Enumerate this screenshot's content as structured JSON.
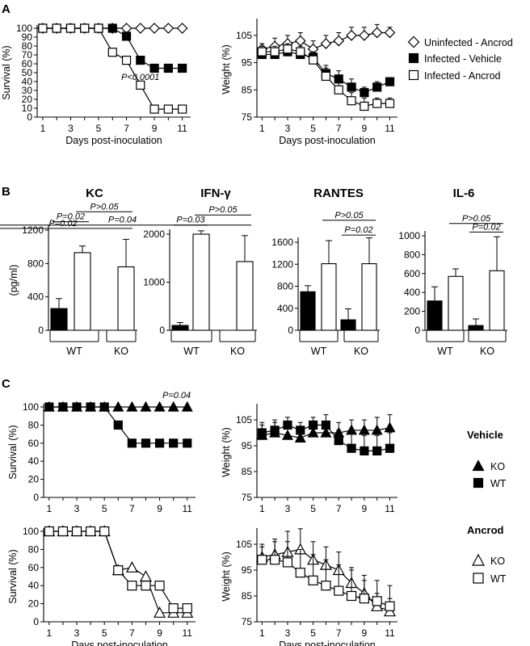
{
  "panels": {
    "a": "A",
    "b": "B",
    "c": "C"
  },
  "legend_a": [
    {
      "label": "Uninfected - Ancrod",
      "marker": "diamond-open"
    },
    {
      "label": "Infected - Vehicle",
      "marker": "square-filled"
    },
    {
      "label": "Infected - Ancrod",
      "marker": "square-open"
    }
  ],
  "legend_c": {
    "vehicle_title": "Vehicle",
    "ancrod_title": "Ancrod",
    "vehicle": [
      {
        "label": "KO",
        "marker": "triangle-filled"
      },
      {
        "label": "WT",
        "marker": "square-filled"
      }
    ],
    "ancrod": [
      {
        "label": "KO",
        "marker": "triangle-open"
      },
      {
        "label": "WT",
        "marker": "square-open"
      }
    ]
  },
  "b_groups": [
    "WT",
    "KO"
  ],
  "chart_data": [
    {
      "id": "A-survival",
      "type": "line",
      "xlabel": "Days post-inoculation",
      "ylabel": "Survival (%)",
      "xlim": [
        0.6,
        11.6
      ],
      "xticks": [
        1,
        3,
        5,
        7,
        9,
        11
      ],
      "ylim": [
        0,
        100
      ],
      "yticks": [
        0,
        10,
        20,
        30,
        40,
        50,
        60,
        70,
        80,
        90,
        100
      ],
      "annotation": "P<0.0001",
      "series": [
        {
          "marker": "diamond-open",
          "x": [
            1,
            2,
            3,
            4,
            5,
            6,
            7,
            8,
            9,
            10,
            11
          ],
          "y": [
            100,
            100,
            100,
            100,
            100,
            100,
            100,
            100,
            100,
            100,
            100
          ]
        },
        {
          "marker": "square-filled",
          "x": [
            1,
            2,
            3,
            4,
            5,
            6,
            7,
            8,
            9,
            10,
            11
          ],
          "y": [
            100,
            100,
            100,
            100,
            100,
            100,
            91,
            64,
            55,
            55,
            55
          ]
        },
        {
          "marker": "square-open",
          "x": [
            1,
            2,
            3,
            4,
            5,
            6,
            7,
            8,
            9,
            10,
            11
          ],
          "y": [
            100,
            100,
            100,
            100,
            100,
            73,
            64,
            36,
            9,
            9,
            9
          ]
        }
      ]
    },
    {
      "id": "A-weight",
      "type": "line",
      "xlabel": "Days post-inoculation",
      "ylabel": "Weight  (%)",
      "xlim": [
        0.6,
        11.6
      ],
      "xticks": [
        1,
        3,
        5,
        7,
        9,
        11
      ],
      "ylim": [
        75,
        110
      ],
      "yticks": [
        75,
        85,
        95,
        105
      ],
      "series": [
        {
          "marker": "diamond-open",
          "x": [
            1,
            2,
            3,
            4,
            5,
            6,
            7,
            8,
            9,
            10,
            11
          ],
          "y": [
            100,
            101,
            102,
            103,
            100,
            102,
            103,
            105,
            105,
            106,
            106
          ],
          "err": [
            2,
            3,
            3,
            3,
            3,
            3,
            3,
            3,
            3,
            3,
            2
          ]
        },
        {
          "marker": "square-filled",
          "x": [
            1,
            2,
            3,
            4,
            5,
            6,
            7,
            8,
            9,
            10,
            11
          ],
          "y": [
            98,
            98,
            99,
            98,
            97,
            91,
            89,
            86,
            84,
            86,
            88
          ],
          "err": [
            2,
            2,
            2,
            2,
            2,
            3,
            3,
            3,
            2,
            2,
            1
          ]
        },
        {
          "marker": "square-open",
          "x": [
            1,
            2,
            3,
            4,
            5,
            6,
            7,
            8,
            9,
            10,
            11
          ],
          "y": [
            99,
            99,
            100,
            99,
            96,
            90,
            85,
            81,
            79,
            80,
            80
          ],
          "err": [
            2,
            2,
            2,
            2,
            2,
            3,
            3,
            3,
            3,
            2,
            2
          ]
        }
      ]
    },
    {
      "id": "B-KC",
      "type": "bar",
      "title": "KC",
      "ylabel": "(pg/ml)",
      "ylim": [
        0,
        1200
      ],
      "yticks": [
        0,
        400,
        800,
        1200
      ],
      "groups": [
        "WT",
        "KO"
      ],
      "values": [
        [
          260,
          930
        ],
        [
          0,
          760
        ]
      ],
      "errors": [
        [
          120,
          80
        ],
        [
          0,
          330
        ]
      ],
      "comparisons": [
        {
          "label": "P=0.02",
          "from": [
            0,
            0
          ],
          "to": [
            0,
            1
          ],
          "level": 1300
        },
        {
          "label": "P>0.05",
          "from": [
            0,
            1
          ],
          "to": [
            1,
            1
          ],
          "level": 1420
        },
        {
          "label": "P=0.02",
          "from": [
            1,
            0
          ],
          "to": [
            1,
            1
          ],
          "level": 1220
        }
      ]
    },
    {
      "id": "B-IFNg",
      "type": "bar",
      "title": "IFN-γ",
      "ylim": [
        0,
        2000
      ],
      "yticks": [
        0,
        1000,
        2000
      ],
      "groups": [
        "WT",
        "KO"
      ],
      "values": [
        [
          100,
          2000
        ],
        [
          0,
          1430
        ]
      ],
      "errors": [
        [
          60,
          70
        ],
        [
          0,
          540
        ]
      ],
      "comparisons": [
        {
          "label": "P=0.03",
          "from": [
            0,
            0
          ],
          "to": [
            0,
            1
          ],
          "level": 2190
        },
        {
          "label": "P>0.05",
          "from": [
            0,
            1
          ],
          "to": [
            1,
            1
          ],
          "level": 2400
        },
        {
          "label": "P=0.04",
          "from": [
            1,
            0
          ],
          "to": [
            1,
            1
          ],
          "level": 2190
        }
      ]
    },
    {
      "id": "B-RANTES",
      "type": "bar",
      "title": "RANTES",
      "ylim": [
        0,
        1600
      ],
      "yticks": [
        0,
        400,
        800,
        1200,
        1600
      ],
      "groups": [
        "WT",
        "KO"
      ],
      "values": [
        [
          700,
          1210
        ],
        [
          190,
          1210
        ]
      ],
      "errors": [
        [
          110,
          420
        ],
        [
          200,
          470
        ]
      ],
      "comparisons": [
        {
          "label": "P>0.05",
          "from": [
            0,
            1
          ],
          "to": [
            1,
            1
          ],
          "level": 2000
        },
        {
          "label": "P=0.02",
          "from": [
            1,
            0
          ],
          "to": [
            1,
            1
          ],
          "level": 1730
        }
      ]
    },
    {
      "id": "B-IL6",
      "type": "bar",
      "title": "IL-6",
      "ylim": [
        0,
        1000
      ],
      "yticks": [
        0,
        200,
        400,
        600,
        800,
        1000
      ],
      "groups": [
        "WT",
        "KO"
      ],
      "values": [
        [
          310,
          570
        ],
        [
          50,
          630
        ]
      ],
      "errors": [
        [
          150,
          80
        ],
        [
          70,
          360
        ]
      ],
      "comparisons": [
        {
          "label": "P>0.05",
          "from": [
            0,
            1
          ],
          "to": [
            1,
            1
          ],
          "level": 1130
        },
        {
          "label": "P=0.02",
          "from": [
            1,
            0
          ],
          "to": [
            1,
            1
          ],
          "level": 1040
        }
      ]
    },
    {
      "id": "C-vehicle-survival",
      "type": "line",
      "xlabel": "",
      "ylabel": "Survival (%)",
      "xlim": [
        0.6,
        11.6
      ],
      "xticks": [
        1,
        3,
        5,
        7,
        9,
        11
      ],
      "ylim": [
        0,
        100
      ],
      "yticks": [
        0,
        20,
        40,
        60,
        80,
        100
      ],
      "annotation": "P=0.04",
      "series": [
        {
          "marker": "triangle-filled",
          "x": [
            1,
            2,
            3,
            4,
            5,
            6,
            7,
            8,
            9,
            10,
            11
          ],
          "y": [
            100,
            100,
            100,
            100,
            100,
            100,
            100,
            100,
            100,
            100,
            100
          ]
        },
        {
          "marker": "square-filled",
          "x": [
            1,
            2,
            3,
            4,
            5,
            6,
            7,
            8,
            9,
            10,
            11
          ],
          "y": [
            100,
            100,
            100,
            100,
            100,
            80,
            60,
            60,
            60,
            60,
            60
          ]
        }
      ]
    },
    {
      "id": "C-vehicle-weight",
      "type": "line",
      "xlabel": "",
      "ylabel": "Weight  (%)",
      "xlim": [
        0.6,
        11.6
      ],
      "xticks": [
        1,
        3,
        5,
        7,
        9,
        11
      ],
      "ylim": [
        75,
        110
      ],
      "yticks": [
        75,
        85,
        95,
        105
      ],
      "series": [
        {
          "marker": "triangle-filled",
          "x": [
            1,
            2,
            3,
            4,
            5,
            6,
            7,
            8,
            9,
            10,
            11
          ],
          "y": [
            99,
            100,
            99,
            98,
            100,
            100,
            100,
            101,
            101,
            101,
            102
          ],
          "err": [
            4,
            4,
            4,
            4,
            4,
            4,
            4,
            4,
            4,
            5,
            5
          ]
        },
        {
          "marker": "square-filled",
          "x": [
            1,
            2,
            3,
            4,
            5,
            6,
            7,
            8,
            9,
            10,
            11
          ],
          "y": [
            100,
            101,
            103,
            101,
            103,
            103,
            97,
            94,
            93,
            93,
            94
          ],
          "err": [
            4,
            4,
            3,
            3,
            3,
            4,
            4,
            6,
            6,
            6,
            6
          ]
        }
      ]
    },
    {
      "id": "C-ancrod-survival",
      "type": "line",
      "xlabel": "Days post-inoculation",
      "ylabel": "Survival (%)",
      "xlim": [
        0.6,
        11.6
      ],
      "xticks": [
        1,
        3,
        5,
        7,
        9,
        11
      ],
      "ylim": [
        0,
        100
      ],
      "yticks": [
        0,
        20,
        40,
        60,
        80,
        100
      ],
      "series": [
        {
          "marker": "triangle-open",
          "x": [
            1,
            2,
            3,
            4,
            5,
            6,
            7,
            8,
            9,
            10,
            11
          ],
          "y": [
            100,
            100,
            100,
            100,
            100,
            57,
            60,
            50,
            10,
            10,
            10
          ]
        },
        {
          "marker": "square-open",
          "x": [
            1,
            2,
            3,
            4,
            5,
            6,
            7,
            8,
            9,
            10,
            11
          ],
          "y": [
            100,
            100,
            100,
            100,
            100,
            57,
            40,
            40,
            40,
            15,
            15
          ]
        }
      ]
    },
    {
      "id": "C-ancrod-weight",
      "type": "line",
      "xlabel": "Days post-inoculation",
      "ylabel": "Weight  (%)",
      "xlim": [
        0.6,
        11.6
      ],
      "xticks": [
        1,
        3,
        5,
        7,
        9,
        11
      ],
      "ylim": [
        75,
        110
      ],
      "yticks": [
        75,
        85,
        95,
        105
      ],
      "series": [
        {
          "marker": "triangle-open",
          "x": [
            1,
            2,
            3,
            4,
            5,
            6,
            7,
            8,
            9,
            10,
            11
          ],
          "y": [
            100,
            101,
            102,
            103,
            99,
            97,
            95,
            90,
            86,
            81,
            79
          ],
          "err": [
            5,
            6,
            8,
            8,
            7,
            7,
            7,
            6,
            5,
            5,
            5
          ]
        },
        {
          "marker": "square-open",
          "x": [
            1,
            2,
            3,
            4,
            5,
            6,
            7,
            8,
            9,
            10,
            11
          ],
          "y": [
            99,
            99,
            98,
            94,
            91,
            89,
            87,
            85,
            84,
            83,
            81
          ],
          "err": [
            5,
            7,
            8,
            9,
            10,
            10,
            10,
            10,
            9,
            8,
            8
          ]
        }
      ]
    }
  ]
}
